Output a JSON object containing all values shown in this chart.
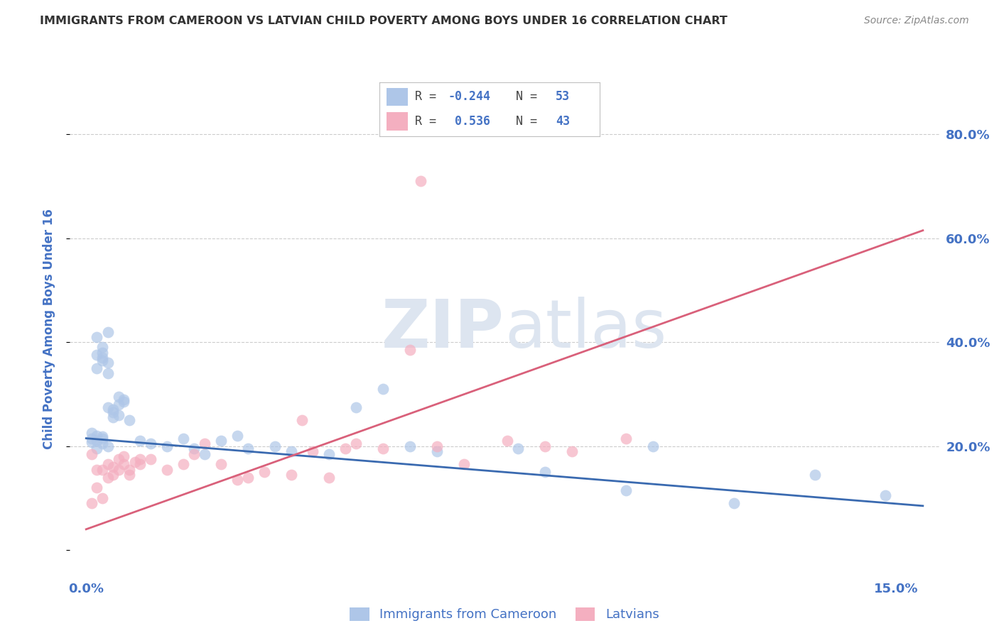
{
  "title": "IMMIGRANTS FROM CAMEROON VS LATVIAN CHILD POVERTY AMONG BOYS UNDER 16 CORRELATION CHART",
  "source": "Source: ZipAtlas.com",
  "ylabel": "Child Poverty Among Boys Under 16",
  "ytick_vals": [
    0.0,
    0.2,
    0.4,
    0.6,
    0.8
  ],
  "ytick_labels": [
    "",
    "20.0%",
    "40.0%",
    "60.0%",
    "80.0%"
  ],
  "xtick_vals": [
    0.0,
    0.15
  ],
  "xtick_labels": [
    "0.0%",
    "15.0%"
  ],
  "xlim": [
    -0.003,
    0.158
  ],
  "ylim": [
    -0.05,
    0.9
  ],
  "series_blue": {
    "name": "Immigrants from Cameroon",
    "color": "#aec6e8",
    "line_color": "#3a6ab0",
    "R": -0.244,
    "N": 53,
    "trend_x": [
      0.0,
      0.155
    ],
    "trend_y": [
      0.215,
      0.085
    ]
  },
  "series_pink": {
    "name": "Latvians",
    "color": "#f4afc0",
    "line_color": "#d9607a",
    "R": 0.536,
    "N": 43,
    "trend_x": [
      0.0,
      0.155
    ],
    "trend_y": [
      0.04,
      0.615
    ]
  },
  "blue_scatter_x": [
    0.001,
    0.002,
    0.001,
    0.003,
    0.002,
    0.003,
    0.004,
    0.002,
    0.003,
    0.001,
    0.002,
    0.003,
    0.004,
    0.003,
    0.002,
    0.004,
    0.003,
    0.002,
    0.003,
    0.004,
    0.005,
    0.004,
    0.005,
    0.006,
    0.005,
    0.006,
    0.007,
    0.006,
    0.007,
    0.008,
    0.01,
    0.012,
    0.015,
    0.018,
    0.02,
    0.022,
    0.025,
    0.028,
    0.03,
    0.035,
    0.038,
    0.045,
    0.05,
    0.055,
    0.06,
    0.065,
    0.08,
    0.085,
    0.1,
    0.105,
    0.12,
    0.135,
    0.148
  ],
  "blue_scatter_y": [
    0.215,
    0.22,
    0.225,
    0.218,
    0.21,
    0.205,
    0.2,
    0.195,
    0.215,
    0.208,
    0.35,
    0.38,
    0.42,
    0.39,
    0.41,
    0.36,
    0.37,
    0.375,
    0.365,
    0.34,
    0.265,
    0.275,
    0.255,
    0.26,
    0.27,
    0.28,
    0.29,
    0.295,
    0.285,
    0.25,
    0.21,
    0.205,
    0.2,
    0.215,
    0.195,
    0.185,
    0.21,
    0.22,
    0.195,
    0.2,
    0.19,
    0.185,
    0.275,
    0.31,
    0.2,
    0.19,
    0.195,
    0.15,
    0.115,
    0.2,
    0.09,
    0.145,
    0.105
  ],
  "pink_scatter_x": [
    0.001,
    0.001,
    0.002,
    0.002,
    0.003,
    0.003,
    0.004,
    0.004,
    0.005,
    0.005,
    0.006,
    0.006,
    0.007,
    0.007,
    0.008,
    0.008,
    0.009,
    0.01,
    0.01,
    0.012,
    0.015,
    0.018,
    0.02,
    0.022,
    0.025,
    0.028,
    0.03,
    0.033,
    0.038,
    0.042,
    0.048,
    0.05,
    0.055,
    0.06,
    0.065,
    0.07,
    0.078,
    0.085,
    0.09,
    0.1,
    0.04,
    0.045,
    0.062
  ],
  "pink_scatter_y": [
    0.185,
    0.09,
    0.155,
    0.12,
    0.155,
    0.1,
    0.14,
    0.165,
    0.16,
    0.145,
    0.155,
    0.175,
    0.18,
    0.165,
    0.145,
    0.155,
    0.17,
    0.165,
    0.175,
    0.175,
    0.155,
    0.165,
    0.185,
    0.205,
    0.165,
    0.135,
    0.14,
    0.15,
    0.145,
    0.19,
    0.195,
    0.205,
    0.195,
    0.385,
    0.2,
    0.165,
    0.21,
    0.2,
    0.19,
    0.215,
    0.25,
    0.14,
    0.71
  ],
  "background_color": "#ffffff",
  "grid_color": "#cccccc",
  "axis_color": "#4472c4",
  "title_color": "#333333",
  "source_color": "#888888",
  "watermark_color": "#dde5f0"
}
